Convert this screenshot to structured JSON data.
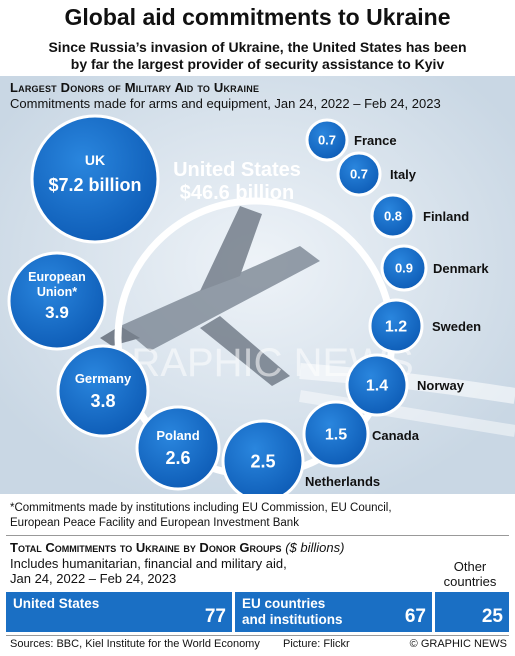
{
  "header": {
    "title": "Global aid commitments to Ukraine",
    "subtitle_line1": "Since Russia’s invasion of Ukraine, the United States has been",
    "subtitle_line2": "by far the largest provider of security assistance to Kyiv"
  },
  "section1": {
    "heading": "Largest Donors of Military Aid to Ukraine",
    "subheading": "Commitments made for arms and equipment, Jan 24, 2022 – Feb 24, 2023",
    "watermark": "GRAPHIC NEWS",
    "footnote_line1": "*Commitments made by institutions including EU Commission, EU Council,",
    "footnote_line2": "European Peace Facility and European Investment Bank"
  },
  "section2": {
    "heading": "Total Commitments to Ukraine by Donor Groups",
    "unit": "($ billions)",
    "sub_line1": "Includes humanitarian, financial and military aid,",
    "sub_line2": "Jan 24, 2022 – Feb 24, 2023",
    "other_label_line1": "Other",
    "other_label_line2": "countries"
  },
  "footer": {
    "sources": "Sources: BBC, Kiel Institute for the World Economy",
    "picture": "Picture: Flickr",
    "credit": "© GRAPHIC NEWS"
  },
  "colors": {
    "accent": "#1a6fc4",
    "bubble_dark": "#0d5bb5",
    "bubble_light": "#2a86de"
  },
  "chart_data": [
    {
      "type": "bubble",
      "title": "Largest Donors of Military Aid to Ukraine",
      "unit": "$ billion",
      "highlight": {
        "label_line1": "United States",
        "label_line2": "$46.6 billion",
        "value": 46.6
      },
      "points": [
        {
          "name": "UK",
          "value": 7.2,
          "label": "$7.2 billion"
        },
        {
          "name": "European Union*",
          "value": 3.9,
          "label": "3.9"
        },
        {
          "name": "Germany",
          "value": 3.8,
          "label": "3.8"
        },
        {
          "name": "Poland",
          "value": 2.6,
          "label": "2.6"
        },
        {
          "name": "Netherlands",
          "value": 2.5,
          "label": "2.5"
        },
        {
          "name": "Canada",
          "value": 1.5,
          "label": "1.5"
        },
        {
          "name": "Norway",
          "value": 1.4,
          "label": "1.4"
        },
        {
          "name": "Sweden",
          "value": 1.2,
          "label": "1.2"
        },
        {
          "name": "Denmark",
          "value": 0.9,
          "label": "0.9"
        },
        {
          "name": "Finland",
          "value": 0.8,
          "label": "0.8"
        },
        {
          "name": "Italy",
          "value": 0.7,
          "label": "0.7"
        },
        {
          "name": "France",
          "value": 0.7,
          "label": "0.7"
        }
      ]
    },
    {
      "type": "bar",
      "title": "Total Commitments to Ukraine by Donor Groups",
      "unit": "$ billions",
      "categories": [
        "United States",
        "EU countries and institutions",
        "Other countries"
      ],
      "values": [
        77,
        67,
        25
      ]
    }
  ]
}
